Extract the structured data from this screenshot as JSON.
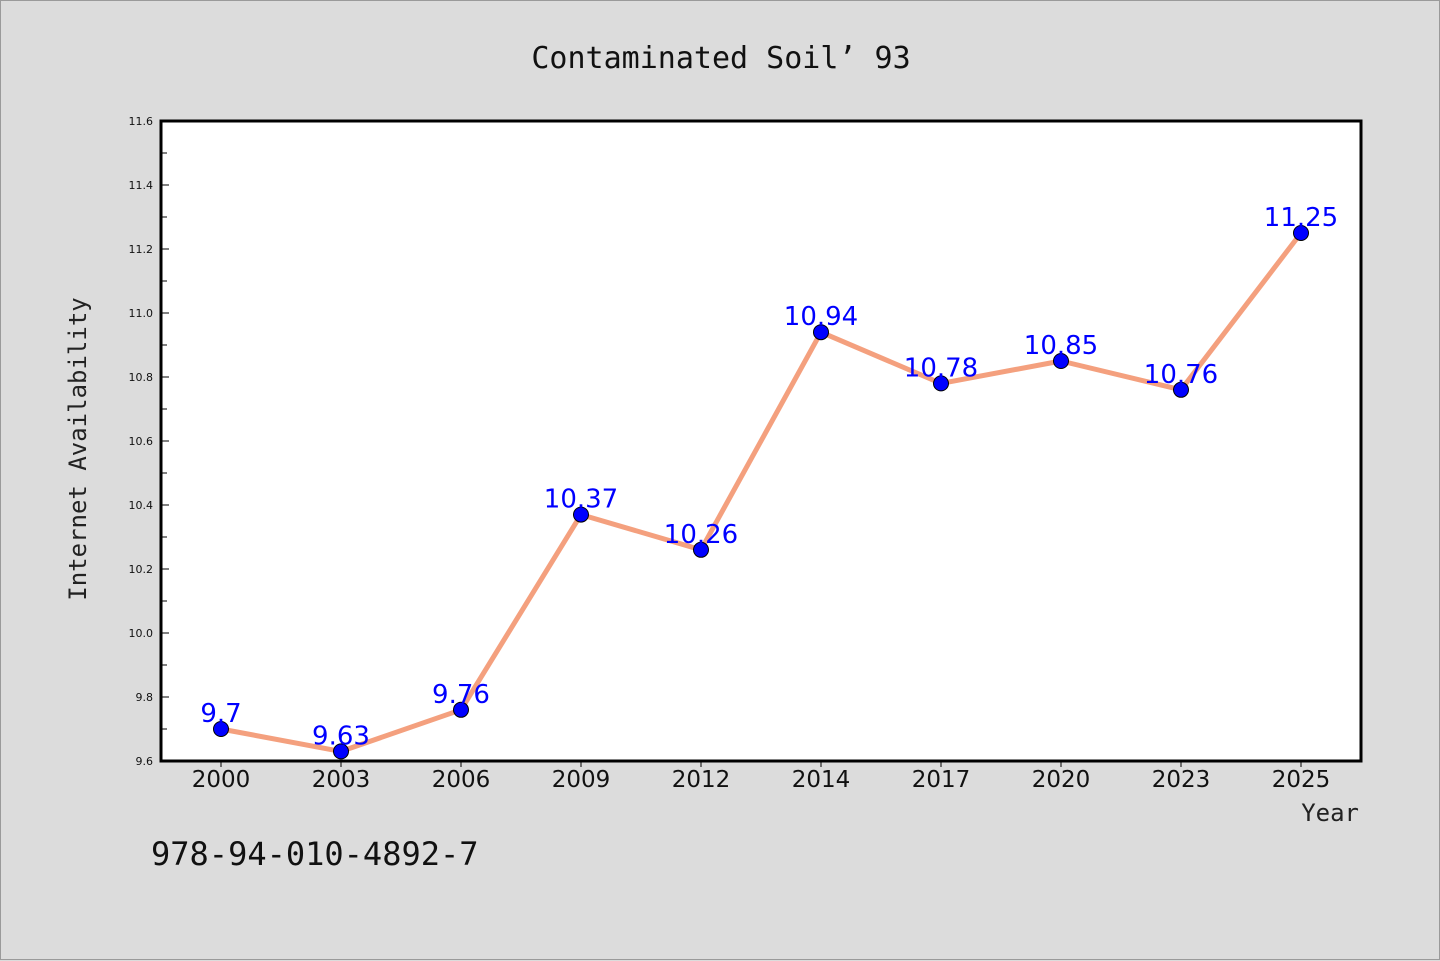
{
  "chart_data": {
    "type": "line",
    "title": "Contaminated Soil’ 93",
    "xlabel": "Year",
    "ylabel": "Internet Availability",
    "categories": [
      "2000",
      "2003",
      "2006",
      "2009",
      "2012",
      "2014",
      "2017",
      "2020",
      "2023",
      "2025"
    ],
    "values": [
      9.7,
      9.63,
      9.76,
      10.37,
      10.26,
      10.94,
      10.78,
      10.85,
      10.76,
      11.25
    ],
    "data_labels": [
      "9.7",
      "9.63",
      "9.76",
      "10.37",
      "10.26",
      "10.94",
      "10.78",
      "10.85",
      "10.76",
      "11.25"
    ],
    "yticks": [
      "9.6",
      "9.8",
      "10.0",
      "10.2",
      "10.4",
      "10.6",
      "10.8",
      "11.0",
      "11.2",
      "11.4",
      "11.6"
    ],
    "ylim": [
      9.6,
      11.6
    ],
    "grid": false,
    "legend": "none",
    "colors": {
      "line": "#f4a07e",
      "marker": "#0000ff",
      "label": "#0000ff",
      "background": "#dcdcdc",
      "plot": "#ffffff"
    }
  },
  "annotation": {
    "isbn": "978-94-010-4892-7"
  }
}
